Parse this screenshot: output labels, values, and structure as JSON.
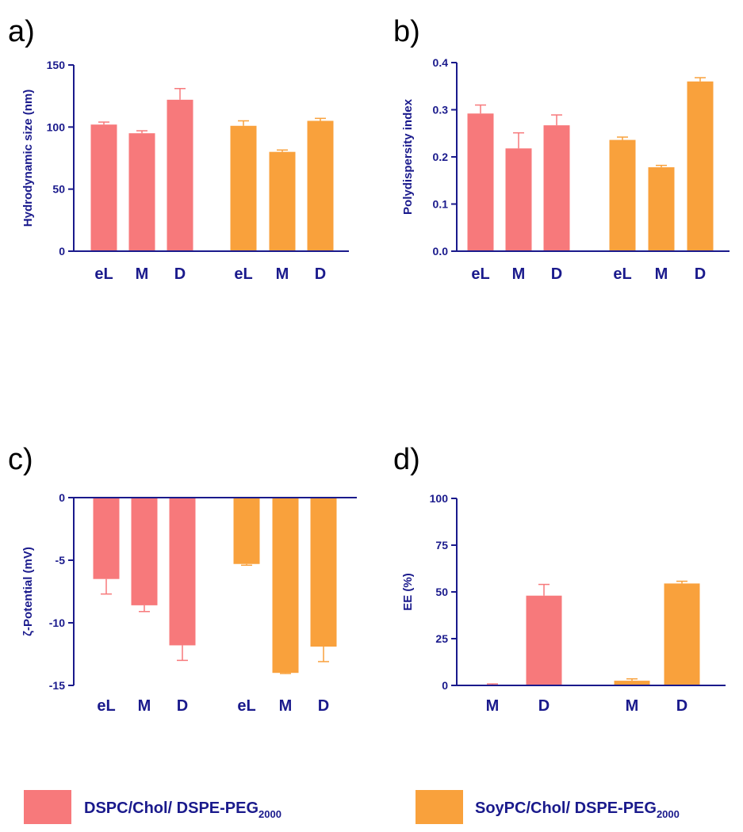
{
  "colors": {
    "axis": "#1a1a8c",
    "series1": "#f7797b",
    "series2": "#f9a13c",
    "error1": "#f7797b",
    "error2": "#f9a13c"
  },
  "chart_data": [
    {
      "panel": "a)",
      "type": "bar",
      "ylabel": "Hydrodynamic size (nm)",
      "ylim": [
        0,
        150
      ],
      "yticks": [
        0,
        50,
        100,
        150
      ],
      "yticklabels": [
        "0",
        "50",
        "100",
        "150"
      ],
      "groups": [
        {
          "series": 0,
          "bars": [
            {
              "label": "eL",
              "value": 102,
              "error": 2
            },
            {
              "label": "M",
              "value": 95,
              "error": 2
            },
            {
              "label": "D",
              "value": 122,
              "error": 9
            }
          ]
        },
        {
          "series": 1,
          "bars": [
            {
              "label": "eL",
              "value": 101,
              "error": 4
            },
            {
              "label": "M",
              "value": 80,
              "error": 1.5
            },
            {
              "label": "D",
              "value": 105,
              "error": 2
            }
          ]
        }
      ]
    },
    {
      "panel": "b)",
      "type": "bar",
      "ylabel": "Polydispersity index",
      "ylim": [
        0,
        0.4
      ],
      "yticks": [
        0,
        0.1,
        0.2,
        0.3,
        0.4
      ],
      "yticklabels": [
        "0.0",
        "0.1",
        "0.2",
        "0.3",
        "0.4"
      ],
      "groups": [
        {
          "series": 0,
          "bars": [
            {
              "label": "eL",
              "value": 0.292,
              "error": 0.018
            },
            {
              "label": "M",
              "value": 0.218,
              "error": 0.033
            },
            {
              "label": "D",
              "value": 0.267,
              "error": 0.022
            }
          ]
        },
        {
          "series": 1,
          "bars": [
            {
              "label": "eL",
              "value": 0.236,
              "error": 0.006
            },
            {
              "label": "M",
              "value": 0.178,
              "error": 0.004
            },
            {
              "label": "D",
              "value": 0.36,
              "error": 0.008
            }
          ]
        }
      ]
    },
    {
      "panel": "c)",
      "type": "bar",
      "ylabel": "ζ-Potential (mV)",
      "ylim": [
        -15,
        0
      ],
      "yticks": [
        -15,
        -10,
        -5,
        0
      ],
      "yticklabels": [
        "-15",
        "-10",
        "-5",
        "0"
      ],
      "groups": [
        {
          "series": 0,
          "bars": [
            {
              "label": "eL",
              "value": -6.5,
              "error": 1.2
            },
            {
              "label": "M",
              "value": -8.6,
              "error": 0.5
            },
            {
              "label": "D",
              "value": -11.8,
              "error": 1.2
            }
          ]
        },
        {
          "series": 1,
          "bars": [
            {
              "label": "eL",
              "value": -5.3,
              "error": 0.1
            },
            {
              "label": "M",
              "value": -14.0,
              "error": 0.05
            },
            {
              "label": "D",
              "value": -11.9,
              "error": 1.2
            }
          ]
        }
      ]
    },
    {
      "panel": "d)",
      "type": "bar",
      "ylabel": "EE (%)",
      "ylim": [
        0,
        100
      ],
      "yticks": [
        0,
        25,
        50,
        75,
        100
      ],
      "yticklabels": [
        "0",
        "25",
        "50",
        "75",
        "100"
      ],
      "groups": [
        {
          "series": 0,
          "bars": [
            {
              "label": "M",
              "value": 0.3,
              "error": 0.5
            },
            {
              "label": "D",
              "value": 48,
              "error": 6
            }
          ]
        },
        {
          "series": 1,
          "bars": [
            {
              "label": "M",
              "value": 2.5,
              "error": 1
            },
            {
              "label": "D",
              "value": 54.5,
              "error": 1.2
            }
          ]
        }
      ]
    }
  ],
  "legend": [
    {
      "main": "DSPC/Chol/ DSPE-PEG",
      "sub": "2000"
    },
    {
      "main": "SoyPC/Chol/ DSPE-PEG",
      "sub": "2000"
    }
  ]
}
